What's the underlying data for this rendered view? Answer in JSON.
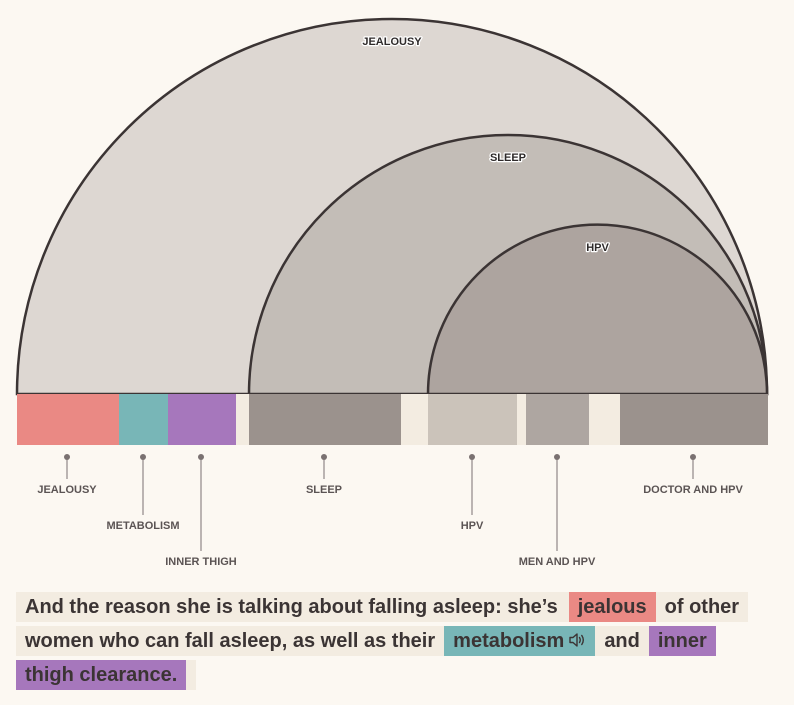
{
  "colors": {
    "background": "#fcf8f2",
    "gap": "#f3ece1",
    "arc_stroke": "#3b3434",
    "arc_outer": "#ddd7d2",
    "arc_middle": "#c3bdb7",
    "arc_inner": "#ada49f",
    "jealousy": "#ea8984",
    "metabolism": "#78b6b7",
    "inner_thigh": "#a677bc",
    "sleep": "#9b928d",
    "hpv": "#cbc3ba",
    "men_and_hpv": "#aea6a1",
    "doctor_and_hpv": "#9b928d",
    "stem": "#7a7171"
  },
  "arcs": [
    {
      "label": "JEALOUSY",
      "fill": "#ddd7d2"
    },
    {
      "label": "SLEEP",
      "fill": "#c3bdb7"
    },
    {
      "label": "HPV",
      "fill": "#ada49f"
    }
  ],
  "topics": [
    {
      "label": "JEALOUSY",
      "color": "#ea8984"
    },
    {
      "label": "METABOLISM",
      "color": "#78b6b7"
    },
    {
      "label": "INNER THIGH",
      "color": "#a677bc"
    },
    {
      "label": "SLEEP",
      "color": "#9b928d"
    },
    {
      "label": "HPV",
      "color": "#cbc3ba"
    },
    {
      "label": "MEN AND HPV",
      "color": "#aea6a1"
    },
    {
      "label": "DOCTOR AND HPV",
      "color": "#9b928d"
    }
  ],
  "transcript": {
    "line1_text": "And the reason she is talking about falling asleep: she’s",
    "jealous": "jealous",
    "line1_tail": "of other",
    "line2_text": "women who can fall asleep, as well as their",
    "metabolism": "metabolism",
    "and": "and",
    "inner": "inner",
    "line3_highlight": "thigh clearance.",
    "speaker_icon": "speaker-icon"
  }
}
